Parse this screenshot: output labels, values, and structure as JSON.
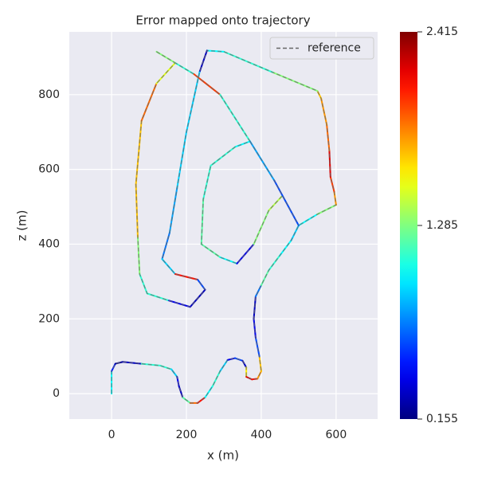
{
  "chart_data": {
    "type": "line",
    "title": "Error mapped onto trajectory",
    "xlabel": "x (m)",
    "ylabel": "z (m)",
    "x": [
      0,
      0,
      10,
      30,
      80,
      130,
      160,
      175,
      180,
      190,
      210,
      230,
      250,
      270,
      290,
      310,
      330,
      350,
      360,
      360,
      375,
      390,
      400,
      395,
      385,
      380,
      385,
      400,
      420,
      450,
      480,
      500,
      550,
      600,
      595,
      585,
      582,
      575,
      560,
      550,
      430,
      300,
      255,
      235,
      200,
      175,
      155,
      135,
      170,
      230,
      250,
      210,
      150,
      95,
      75,
      70,
      65,
      80,
      120,
      170,
      220,
      290,
      370,
      330,
      265,
      245,
      240,
      290,
      335,
      380,
      420,
      455,
      null,
      370,
      435,
      500,
      null,
      120,
      170
    ],
    "series": [
      {
        "name": "reference",
        "color": "#666666",
        "values": [
          0,
          60,
          80,
          85,
          80,
          75,
          65,
          45,
          20,
          -10,
          -25,
          -25,
          -10,
          20,
          60,
          90,
          95,
          88,
          70,
          45,
          38,
          40,
          60,
          100,
          150,
          200,
          260,
          290,
          330,
          370,
          410,
          450,
          480,
          505,
          540,
          580,
          650,
          720,
          790,
          810,
          860,
          915,
          918,
          860,
          700,
          550,
          430,
          360,
          320,
          305,
          278,
          232,
          250,
          268,
          320,
          420,
          560,
          730,
          830,
          885,
          855,
          800,
          675,
          660,
          610,
          520,
          400,
          365,
          348,
          400,
          490,
          528,
          null,
          675,
          570,
          450,
          null,
          915,
          885
        ]
      }
    ],
    "error": [
      1.0,
      0.5,
      0.2,
      0.3,
      1.1,
      1.1,
      0.9,
      0.4,
      0.3,
      1.2,
      1.9,
      2.1,
      1.0,
      1.1,
      0.9,
      0.4,
      0.6,
      0.3,
      1.6,
      2.2,
      2.1,
      1.8,
      1.7,
      0.6,
      0.4,
      0.3,
      0.7,
      1.2,
      1.1,
      1.0,
      0.9,
      1.0,
      1.3,
      1.8,
      2.0,
      2.2,
      1.9,
      1.8,
      1.7,
      1.3,
      1.1,
      1.0,
      0.3,
      0.9,
      0.9,
      0.8,
      0.7,
      0.9,
      2.1,
      0.6,
      0.3,
      0.4,
      1.1,
      1.1,
      1.3,
      1.7,
      1.7,
      1.9,
      1.5,
      1.1,
      2.0,
      1.1,
      1.0,
      1.1,
      1.1,
      1.2,
      1.2,
      1.0,
      0.4,
      1.3,
      1.4,
      2.0,
      null,
      0.8,
      0.6,
      0.3,
      null,
      1.3,
      1.2
    ],
    "colormap": "jet",
    "clim": [
      0.155,
      2.415
    ],
    "cticks": [
      0.155,
      1.285,
      2.415
    ],
    "xlim": [
      -113,
      711
    ],
    "ylim": [
      -68,
      968
    ],
    "xticks": [
      0,
      200,
      400,
      600
    ],
    "yticks": [
      0,
      200,
      400,
      600,
      800
    ],
    "grid": true,
    "legend": "upper right"
  }
}
